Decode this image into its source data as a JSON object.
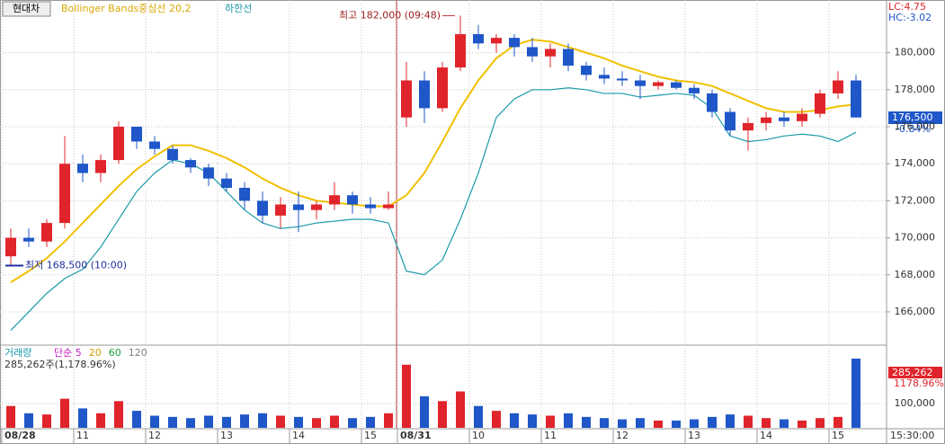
{
  "chart_data": {
    "type": "candlestick",
    "title": "현대차",
    "categories": [
      "08/28",
      null,
      null,
      null,
      "11",
      null,
      null,
      null,
      "12",
      null,
      null,
      null,
      "13",
      null,
      null,
      null,
      "14",
      null,
      null,
      null,
      "15",
      null,
      "08/31",
      null,
      null,
      null,
      "10",
      null,
      null,
      null,
      "11",
      null,
      null,
      null,
      "12",
      null,
      null,
      null,
      "13",
      null,
      null,
      null,
      "14",
      null,
      null,
      null,
      "15",
      null
    ],
    "candles": {
      "open": [
        169000,
        170000,
        169800,
        170800,
        174000,
        173500,
        174200,
        176000,
        175200,
        174800,
        174200,
        173800,
        173200,
        172700,
        172000,
        171200,
        171800,
        171500,
        171800,
        172300,
        171800,
        171600,
        176500,
        178500,
        177000,
        179200,
        181000,
        180500,
        180800,
        180300,
        179800,
        180200,
        179300,
        178800,
        178600,
        178500,
        178200,
        178400,
        178100,
        177800,
        176800,
        175800,
        176200,
        176500,
        176300,
        176700,
        177800,
        178500
      ],
      "high": [
        170500,
        170500,
        171000,
        175500,
        174500,
        174500,
        176300,
        176000,
        175500,
        175000,
        174300,
        174000,
        173500,
        173000,
        172500,
        172200,
        172500,
        172000,
        173000,
        172500,
        172200,
        172500,
        179500,
        179000,
        179500,
        182000,
        181500,
        181000,
        181000,
        180800,
        180500,
        180500,
        179500,
        179200,
        179000,
        178800,
        178500,
        178500,
        178300,
        178000,
        177000,
        176500,
        176800,
        176800,
        177000,
        178000,
        179000,
        178800
      ],
      "low": [
        168500,
        169500,
        169500,
        170500,
        173000,
        173000,
        174000,
        174800,
        174500,
        174000,
        173500,
        172800,
        172500,
        171500,
        170800,
        170500,
        170300,
        171000,
        171500,
        171300,
        171300,
        171500,
        176000,
        176200,
        176800,
        179000,
        180200,
        180000,
        179800,
        179500,
        179200,
        179000,
        178500,
        178300,
        178200,
        177500,
        178000,
        178000,
        177500,
        176500,
        175500,
        174700,
        175800,
        176000,
        176000,
        176500,
        177500,
        176500
      ],
      "close": [
        170000,
        169800,
        170800,
        174000,
        173500,
        174200,
        176000,
        175200,
        174800,
        174200,
        173800,
        173200,
        172700,
        172000,
        171200,
        171800,
        171500,
        171800,
        172300,
        171800,
        171600,
        171800,
        178500,
        177000,
        179200,
        181000,
        180500,
        180800,
        180300,
        179800,
        180200,
        179300,
        178800,
        178600,
        178500,
        178200,
        178400,
        178100,
        177800,
        176800,
        175800,
        176200,
        176500,
        176300,
        176700,
        177800,
        178500,
        176500
      ]
    },
    "up_color": "#e0242b",
    "down_color": "#1f57c8",
    "indicators": [
      {
        "name": "Bollinger Bands중심선 20,2",
        "color": "#f0c000",
        "values": [
          167600,
          168200,
          168900,
          169800,
          170800,
          171800,
          172800,
          173700,
          174400,
          175000,
          175000,
          174700,
          174300,
          173800,
          173200,
          172700,
          172300,
          172000,
          171900,
          171800,
          171700,
          171700,
          172300,
          173500,
          175200,
          177000,
          178500,
          179700,
          180400,
          180700,
          180600,
          180300,
          180000,
          179700,
          179300,
          179000,
          178700,
          178500,
          178400,
          178200,
          177800,
          177400,
          177000,
          176800,
          176800,
          176900,
          177100,
          177200
        ]
      },
      {
        "name": "하한선",
        "color": "#1a9aa8",
        "values": [
          165000,
          166000,
          167000,
          167800,
          168300,
          169500,
          171000,
          172500,
          173500,
          174200,
          174000,
          173500,
          172500,
          171500,
          170800,
          170500,
          170600,
          170800,
          170900,
          171000,
          171000,
          170800,
          168200,
          168000,
          168800,
          171000,
          173500,
          176500,
          177500,
          178000,
          178000,
          178100,
          178000,
          177800,
          177800,
          177600,
          177700,
          177800,
          177700,
          177000,
          175500,
          175200,
          175300,
          175500,
          175600,
          175500,
          175200,
          175700
        ]
      }
    ],
    "ylim": [
      164250,
      182700
    ],
    "yticks": [
      {
        "value": 166000,
        "label": "166,000"
      },
      {
        "value": 168000,
        "label": "168,000"
      },
      {
        "value": 170000,
        "label": "170,000"
      },
      {
        "value": 172000,
        "label": "172,000"
      },
      {
        "value": 174000,
        "label": "174,000"
      },
      {
        "value": 176000,
        "label": "176,000"
      },
      {
        "value": 178000,
        "label": "178,000"
      },
      {
        "value": 180000,
        "label": "180,000"
      }
    ],
    "grid": true,
    "annotations": {
      "high": "최고 182,000 (09:48)",
      "low": "최저 168,500 (10:00)"
    },
    "status": {
      "lc": "LC:4.75",
      "hc": "HC:-3.02",
      "last_price": "176,500",
      "change": "-0.84%"
    },
    "volume": {
      "title": "거래량",
      "ma_labels": [
        {
          "name": "단순 5",
          "color": "#c020c0"
        },
        {
          "name": "20",
          "color": "#d0a000"
        },
        {
          "name": "60",
          "color": "#20a040"
        },
        {
          "name": "120",
          "color": "#808080"
        }
      ],
      "summary": "285,262주(1,178.96%)",
      "values": [
        90000,
        60000,
        55000,
        120000,
        80000,
        60000,
        110000,
        70000,
        50000,
        45000,
        40000,
        50000,
        45000,
        55000,
        60000,
        50000,
        45000,
        40000,
        50000,
        40000,
        45000,
        60000,
        260000,
        130000,
        110000,
        150000,
        90000,
        70000,
        60000,
        55000,
        50000,
        60000,
        45000,
        40000,
        35000,
        40000,
        30000,
        30000,
        35000,
        45000,
        55000,
        50000,
        40000,
        35000,
        30000,
        40000,
        45000,
        285262
      ],
      "ylim": [
        0,
        300000
      ],
      "yticks": [
        {
          "value": 100000,
          "label": "100,000"
        }
      ],
      "last_label": "285,262",
      "last_ratio": "1178.96%"
    },
    "time_label": "15:30:00"
  }
}
